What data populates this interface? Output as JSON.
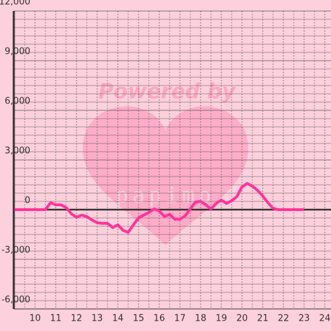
{
  "chart_data": {
    "type": "line",
    "watermark": "Powered by",
    "watermark_brand": "papimo",
    "x": [
      9,
      10.5,
      10.75,
      11,
      11.25,
      11.5,
      11.75,
      12,
      12.25,
      12.5,
      12.75,
      13,
      13.25,
      13.5,
      13.75,
      14,
      14.25,
      14.5,
      14.75,
      15,
      15.25,
      15.5,
      15.75,
      16,
      16.25,
      16.5,
      16.75,
      17,
      17.25,
      17.5,
      17.75,
      18,
      18.25,
      18.5,
      18.75,
      19,
      19.25,
      19.5,
      19.75,
      20,
      20.25,
      20.5,
      20.75,
      21,
      21.25,
      21.5,
      21.75,
      23
    ],
    "series": [
      {
        "color": "#ff3399",
        "values": [
          0,
          0,
          420,
          290,
          290,
          125,
          -250,
          -460,
          -330,
          -420,
          -625,
          -790,
          -830,
          -830,
          -1080,
          -920,
          -1250,
          -1375,
          -920,
          -500,
          -330,
          -170,
          40,
          -80,
          -420,
          -290,
          -580,
          -580,
          -375,
          40,
          460,
          500,
          290,
          40,
          375,
          580,
          375,
          540,
          790,
          1375,
          1580,
          1420,
          1170,
          830,
          420,
          80,
          0,
          0
        ]
      }
    ],
    "xlim": [
      8.97,
      24.3
    ],
    "xticks": [
      10,
      11,
      12,
      13,
      14,
      15,
      16,
      17,
      18,
      19,
      20,
      21,
      22,
      23,
      24
    ],
    "ylim": [
      -6000,
      12000
    ],
    "yticks": [
      {
        "value": -6000,
        "label": "-6,000"
      },
      {
        "value": -3000,
        "label": "-3,000"
      },
      {
        "value": 0,
        "label": "0"
      },
      {
        "value": 3000,
        "label": "3,000"
      },
      {
        "value": 6000,
        "label": "6,000"
      },
      {
        "value": 9000,
        "label": "9,000"
      },
      {
        "value": 12000,
        "label": "12,000"
      }
    ],
    "grid": true
  }
}
